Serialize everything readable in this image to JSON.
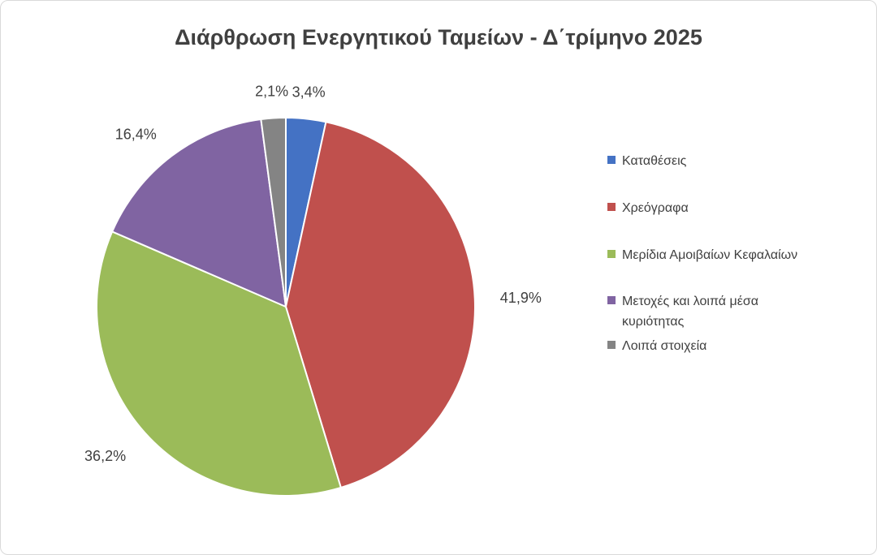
{
  "chart_data": {
    "type": "pie",
    "title": "Διάρθρωση Ενεργητικού Ταμείων - Δ΄τρίμηνο 2025",
    "start_angle_deg": 0,
    "direction": "clockwise",
    "legend_position": "right",
    "grid": false,
    "slices": [
      {
        "name": "Καταθέσεις",
        "value": 3.4,
        "label": "3,4%",
        "color": "#4472C4"
      },
      {
        "name": "Χρεόγραφα",
        "value": 41.9,
        "label": "41,9%",
        "color": "#C0504D"
      },
      {
        "name": "Μερίδια Αμοιβαίων Κεφαλαίων",
        "value": 36.2,
        "label": "36,2%",
        "color": "#9BBB59"
      },
      {
        "name": "Μετοχές και λοιπά μέσα κυριότητας",
        "value": 16.4,
        "label": "16,4%",
        "color": "#8064A2"
      },
      {
        "name": "Λοιπά στοιχεία",
        "value": 2.1,
        "label": "2,1%",
        "color": "#848484"
      }
    ]
  }
}
